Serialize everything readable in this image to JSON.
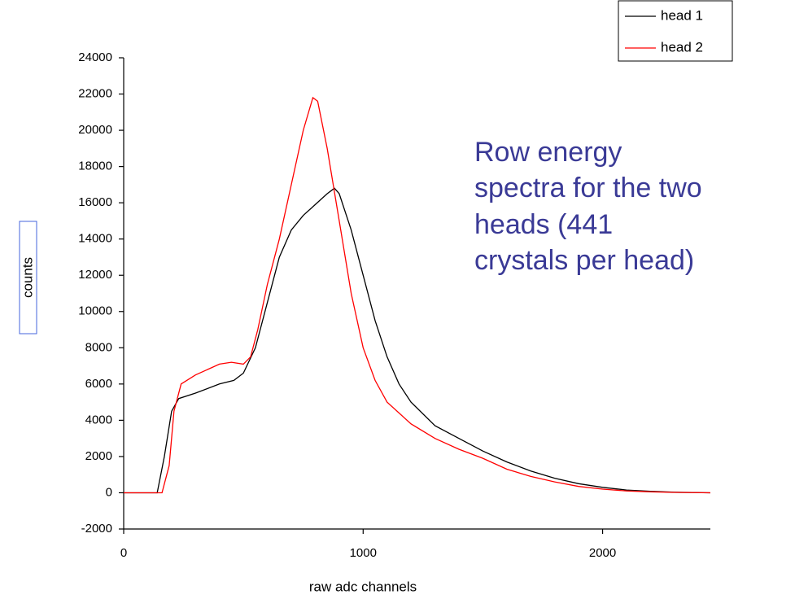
{
  "chart_data": {
    "type": "line",
    "annotation": [
      "Row energy",
      "spectra for the two",
      "heads (441",
      "crystals per head)"
    ],
    "x_label": "raw adc channels",
    "y_label": "counts",
    "xlim": [
      0,
      2450
    ],
    "ylim": [
      -2000,
      24000
    ],
    "xticks": [
      0,
      1000,
      2000
    ],
    "yticks": [
      -2000,
      0,
      2000,
      4000,
      6000,
      8000,
      10000,
      12000,
      14000,
      16000,
      18000,
      20000,
      22000,
      24000
    ],
    "series": [
      {
        "name": "head 1",
        "color": "#000000",
        "x": [
          0,
          140,
          170,
          200,
          230,
          300,
          400,
          460,
          500,
          550,
          600,
          650,
          700,
          750,
          800,
          850,
          880,
          900,
          950,
          1000,
          1050,
          1100,
          1150,
          1200,
          1300,
          1400,
          1500,
          1600,
          1700,
          1800,
          1900,
          2000,
          2100,
          2200,
          2300,
          2450
        ],
        "values": [
          0,
          0,
          2000,
          4500,
          5200,
          5500,
          6000,
          6200,
          6600,
          8000,
          10500,
          13000,
          14500,
          15300,
          15900,
          16500,
          16800,
          16500,
          14500,
          12000,
          9500,
          7500,
          6000,
          5000,
          3700,
          3000,
          2300,
          1700,
          1200,
          800,
          500,
          300,
          150,
          80,
          30,
          0
        ]
      },
      {
        "name": "head 2",
        "color": "#ff0000",
        "x": [
          0,
          160,
          190,
          210,
          240,
          300,
          400,
          450,
          500,
          530,
          560,
          600,
          650,
          700,
          750,
          790,
          810,
          850,
          900,
          950,
          1000,
          1050,
          1100,
          1200,
          1300,
          1400,
          1500,
          1600,
          1700,
          1800,
          1900,
          2000,
          2100,
          2200,
          2300,
          2450
        ],
        "values": [
          0,
          0,
          1500,
          4500,
          6000,
          6500,
          7100,
          7200,
          7100,
          7500,
          9000,
          11500,
          14000,
          17000,
          20000,
          21800,
          21600,
          19000,
          15000,
          11000,
          8000,
          6200,
          5000,
          3800,
          3000,
          2400,
          1900,
          1300,
          900,
          600,
          350,
          200,
          100,
          50,
          20,
          0
        ]
      }
    ]
  }
}
